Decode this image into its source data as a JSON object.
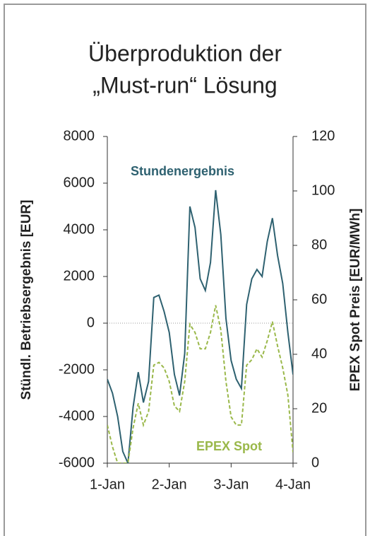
{
  "chart_data": {
    "type": "line",
    "title": [
      "Überproduktion der",
      "„Must-run“ Lösung"
    ],
    "y_label": "Stündl. Betriebsergebnis [EUR]",
    "y2_label": "EPEX Spot Preis [EUR/MWh]",
    "x": [
      0,
      2,
      4,
      6,
      8,
      10,
      12,
      14,
      16,
      18,
      20,
      22,
      24,
      26,
      28,
      30,
      32,
      34,
      36,
      38,
      40,
      42,
      44,
      46,
      48,
      50,
      52,
      54,
      56,
      58,
      60,
      62,
      64,
      66,
      68,
      70,
      72
    ],
    "xlim": [
      0,
      72
    ],
    "xticks": [
      {
        "value": 0,
        "label": "1-Jan"
      },
      {
        "value": 24,
        "label": "2-Jan"
      },
      {
        "value": 48,
        "label": "3-Jan"
      },
      {
        "value": 72,
        "label": "4-Jan"
      }
    ],
    "ylim": [
      -6000,
      8000
    ],
    "yticks": [
      -6000,
      -4000,
      -2000,
      0,
      2000,
      4000,
      6000,
      8000
    ],
    "y2lim": [
      0,
      120
    ],
    "y2ticks": [
      0,
      20,
      40,
      60,
      80,
      100,
      120
    ],
    "series": [
      {
        "name": "Stundenergebnis",
        "color": "#2e6170",
        "dash": false,
        "values": [
          -2400,
          -3000,
          -4000,
          -5500,
          -6000,
          -3600,
          -2100,
          -3400,
          -2500,
          1100,
          1200,
          500,
          -400,
          -2200,
          -3100,
          -1300,
          5000,
          4100,
          1900,
          1400,
          2600,
          5700,
          3800,
          200,
          -1600,
          -2400,
          -2800,
          800,
          1900,
          2300,
          2000,
          3500,
          4500,
          2900,
          1700,
          -400,
          -2200
        ]
      },
      {
        "name": "EPEX Spot",
        "color": "#9ab84a",
        "dash": true,
        "axis": "y2",
        "values": [
          14,
          6,
          0,
          0,
          0,
          13,
          22,
          14,
          19,
          36,
          37,
          35,
          30,
          21,
          19,
          30,
          51,
          48,
          42,
          42,
          48,
          58,
          49,
          30,
          17,
          14,
          14,
          36,
          38,
          42,
          39,
          45,
          52,
          43,
          35,
          25,
          4
        ]
      }
    ]
  }
}
